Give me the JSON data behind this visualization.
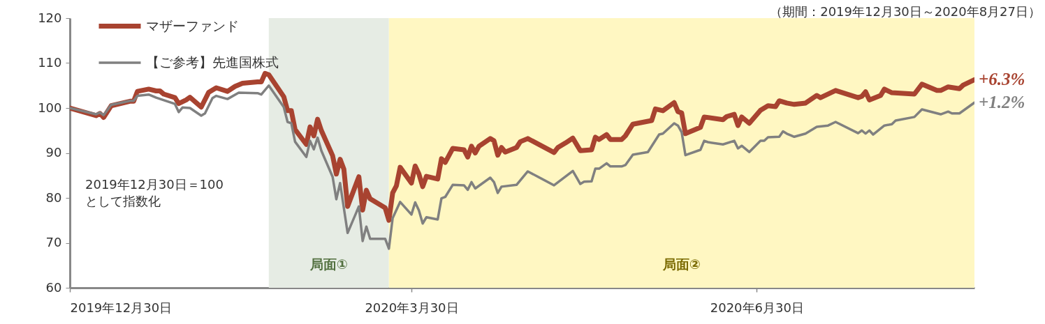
{
  "chart_data": {
    "type": "line",
    "xlim": [
      "2019-12-30",
      "2020-08-27"
    ],
    "xticks": [
      {
        "value": "2019-12-30",
        "label": "2019年12月30日"
      },
      {
        "value": "2020-03-30",
        "label": "2020年3月30日"
      },
      {
        "value": "2020-06-30",
        "label": "2020年6月30日"
      }
    ],
    "ylim": [
      60,
      120
    ],
    "yticks": [
      60,
      70,
      80,
      90,
      100,
      110,
      120
    ],
    "grid": false,
    "legend": "top left",
    "annotations": [
      "2019年12月30日＝100\nとして指数化",
      "（期間：2019年12月30日～2020年8月27日）",
      {
        "text": "+6.3%",
        "x": "2020-08-27",
        "y": 106.3
      },
      {
        "text": "+1.2%",
        "x": "2020-08-27",
        "y": 101.2
      }
    ],
    "bands": [
      {
        "axis": "x",
        "from": "2020-02-21",
        "to": "2020-03-24",
        "label": "局面①",
        "color": "#e6ece4"
      },
      {
        "axis": "x",
        "from": "2020-03-24",
        "to": "2020-08-27",
        "label": "局面②",
        "color": "#fff7c2"
      }
    ],
    "series": [
      {
        "name": "マザーファンド",
        "color": "#a84330",
        "x": [
          "2019-12-30",
          "2020-01-06",
          "2020-01-07",
          "2020-01-08",
          "2020-01-10",
          "2020-01-15",
          "2020-01-16",
          "2020-01-17",
          "2020-01-20",
          "2020-01-22",
          "2020-01-23",
          "2020-01-24",
          "2020-01-27",
          "2020-01-28",
          "2020-01-30",
          "2020-01-31",
          "2020-02-03",
          "2020-02-05",
          "2020-02-07",
          "2020-02-10",
          "2020-02-12",
          "2020-02-14",
          "2020-02-18",
          "2020-02-19",
          "2020-02-20",
          "2020-02-21",
          "2020-02-25",
          "2020-02-26",
          "2020-02-27",
          "2020-02-28",
          "2020-03-02",
          "2020-03-03",
          "2020-03-04",
          "2020-03-05",
          "2020-03-06",
          "2020-03-09",
          "2020-03-10",
          "2020-03-11",
          "2020-03-12",
          "2020-03-13",
          "2020-03-16",
          "2020-03-17",
          "2020-03-18",
          "2020-03-19",
          "2020-03-23",
          "2020-03-24",
          "2020-03-25",
          "2020-03-26",
          "2020-03-27",
          "2020-03-30",
          "2020-03-31",
          "2020-04-01",
          "2020-04-02",
          "2020-04-03",
          "2020-04-06",
          "2020-04-07",
          "2020-04-08",
          "2020-04-10",
          "2020-04-13",
          "2020-04-14",
          "2020-04-15",
          "2020-04-16",
          "2020-04-17",
          "2020-04-20",
          "2020-04-21",
          "2020-04-22",
          "2020-04-23",
          "2020-04-24",
          "2020-04-27",
          "2020-04-28",
          "2020-04-30",
          "2020-05-07",
          "2020-05-08",
          "2020-05-10",
          "2020-05-12",
          "2020-05-14",
          "2020-05-17",
          "2020-05-18",
          "2020-05-19",
          "2020-05-21",
          "2020-05-22",
          "2020-05-25",
          "2020-05-26",
          "2020-05-28",
          "2020-06-02",
          "2020-06-03",
          "2020-06-05",
          "2020-06-08",
          "2020-06-09",
          "2020-06-10",
          "2020-06-11",
          "2020-06-15",
          "2020-06-16",
          "2020-06-21",
          "2020-06-22",
          "2020-06-24",
          "2020-06-25",
          "2020-06-26",
          "2020-06-28",
          "2020-07-01",
          "2020-07-03",
          "2020-07-05",
          "2020-07-06",
          "2020-07-08",
          "2020-07-10",
          "2020-07-13",
          "2020-07-16",
          "2020-07-17",
          "2020-07-21",
          "2020-07-27",
          "2020-07-28",
          "2020-07-29",
          "2020-07-30",
          "2020-08-02",
          "2020-08-03",
          "2020-08-05",
          "2020-08-11",
          "2020-08-13",
          "2020-08-17",
          "2020-08-18",
          "2020-08-20",
          "2020-08-23",
          "2020-08-24",
          "2020-08-27"
        ],
        "values": [
          100,
          98.3,
          98.8,
          97.9,
          100.5,
          101.5,
          101.5,
          103.7,
          104.2,
          103.8,
          103.8,
          103.1,
          102.3,
          101,
          101.8,
          102.4,
          100.2,
          103.5,
          104.5,
          103.7,
          104.8,
          105.5,
          105.8,
          105.8,
          107.7,
          107.4,
          102.5,
          99.4,
          99.4,
          95.2,
          91.9,
          95.8,
          93.8,
          97.5,
          95,
          89.4,
          85.3,
          88.6,
          86.4,
          78.1,
          84.7,
          77.3,
          81.7,
          79.8,
          77.8,
          75,
          81.1,
          82.7,
          86.8,
          83.3,
          87.1,
          85.3,
          82.5,
          84.8,
          84.2,
          88.7,
          87.9,
          91,
          90.7,
          89.1,
          91.5,
          90,
          91.5,
          93.2,
          92.7,
          89.5,
          91.2,
          90.2,
          91.2,
          92.5,
          93.2,
          90.1,
          91.2,
          92.2,
          93.3,
          90.5,
          90.7,
          93.5,
          93,
          94.1,
          93,
          93,
          93.8,
          96.4,
          97.2,
          99.8,
          99.4,
          101.2,
          99.2,
          98.9,
          94.3,
          95.7,
          98,
          97.4,
          98.1,
          98.6,
          96.1,
          98,
          96.6,
          99.5,
          100.5,
          100.3,
          101.6,
          101.1,
          100.8,
          101.1,
          102.8,
          102.3,
          103.9,
          102.3,
          102.6,
          103.6,
          101.8,
          102.8,
          104.2,
          103.4,
          103.1,
          105.3,
          103.9,
          103.9,
          104.7,
          104.3,
          105.1,
          106.3
        ]
      },
      {
        "name": "【ご参考】先進国株式",
        "color": "#808080",
        "x": [
          "2019-12-30",
          "2020-01-06",
          "2020-01-07",
          "2020-01-08",
          "2020-01-10",
          "2020-01-15",
          "2020-01-16",
          "2020-01-17",
          "2020-01-20",
          "2020-01-22",
          "2020-01-27",
          "2020-01-28",
          "2020-01-29",
          "2020-01-31",
          "2020-02-03",
          "2020-02-04",
          "2020-02-06",
          "2020-02-07",
          "2020-02-10",
          "2020-02-13",
          "2020-02-18",
          "2020-02-19",
          "2020-02-21",
          "2020-02-25",
          "2020-02-26",
          "2020-02-27",
          "2020-02-28",
          "2020-03-02",
          "2020-03-03",
          "2020-03-04",
          "2020-03-05",
          "2020-03-06",
          "2020-03-09",
          "2020-03-10",
          "2020-03-11",
          "2020-03-13",
          "2020-03-16",
          "2020-03-17",
          "2020-03-18",
          "2020-03-19",
          "2020-03-23",
          "2020-03-24",
          "2020-03-25",
          "2020-03-27",
          "2020-03-30",
          "2020-03-31",
          "2020-04-01",
          "2020-04-02",
          "2020-04-03",
          "2020-04-06",
          "2020-04-07",
          "2020-04-08",
          "2020-04-10",
          "2020-04-13",
          "2020-04-14",
          "2020-04-15",
          "2020-04-16",
          "2020-04-20",
          "2020-04-21",
          "2020-04-22",
          "2020-04-23",
          "2020-04-27",
          "2020-04-30",
          "2020-05-07",
          "2020-05-12",
          "2020-05-14",
          "2020-05-15",
          "2020-05-17",
          "2020-05-18",
          "2020-05-19",
          "2020-05-21",
          "2020-05-22",
          "2020-05-25",
          "2020-05-26",
          "2020-05-28",
          "2020-06-01",
          "2020-06-04",
          "2020-06-05",
          "2020-06-08",
          "2020-06-09",
          "2020-06-10",
          "2020-06-11",
          "2020-06-15",
          "2020-06-16",
          "2020-06-17",
          "2020-06-21",
          "2020-06-24",
          "2020-06-25",
          "2020-06-26",
          "2020-06-28",
          "2020-07-01",
          "2020-07-02",
          "2020-07-03",
          "2020-07-06",
          "2020-07-07",
          "2020-07-08",
          "2020-07-10",
          "2020-07-13",
          "2020-07-16",
          "2020-07-19",
          "2020-07-21",
          "2020-07-27",
          "2020-07-28",
          "2020-07-29",
          "2020-07-30",
          "2020-07-31",
          "2020-08-03",
          "2020-08-05",
          "2020-08-06",
          "2020-08-11",
          "2020-08-13",
          "2020-08-18",
          "2020-08-20",
          "2020-08-21",
          "2020-08-23",
          "2020-08-27"
        ],
        "values": [
          100,
          98.6,
          99,
          98.4,
          100.7,
          101.6,
          101.6,
          102.7,
          103,
          102.3,
          100.9,
          99.1,
          100.1,
          100,
          98.3,
          98.8,
          102.2,
          102.7,
          102,
          103.4,
          103.3,
          103,
          105,
          100.2,
          96.9,
          96.6,
          92.5,
          89.1,
          92.7,
          90.8,
          93.4,
          90.5,
          84.7,
          79.7,
          83.3,
          72.2,
          78.1,
          70.4,
          73.6,
          70.9,
          70.9,
          68.7,
          75.5,
          79.1,
          76.3,
          79,
          77.2,
          74.3,
          75.7,
          75.2,
          79.9,
          80.2,
          82.9,
          82.8,
          81.8,
          83.5,
          82.1,
          84.5,
          83.5,
          81.1,
          82.5,
          82.9,
          85.9,
          82.8,
          86,
          83.1,
          83.6,
          83.7,
          86.5,
          86.5,
          87.7,
          87,
          87,
          87.3,
          89.6,
          90.2,
          94.1,
          94.3,
          96.6,
          96.1,
          94.6,
          89.5,
          90.7,
          92.7,
          92.4,
          91.9,
          92.7,
          91,
          91.6,
          90.2,
          92.7,
          92.7,
          93.5,
          93.6,
          94.8,
          94.3,
          93.6,
          94.3,
          95.8,
          96.1,
          96.9,
          94.4,
          95,
          94.3,
          95,
          94.1,
          96.1,
          96.4,
          97.2,
          98,
          99.7,
          98.6,
          99.2,
          98.8,
          98.8,
          101.2
        ]
      }
    ]
  }
}
